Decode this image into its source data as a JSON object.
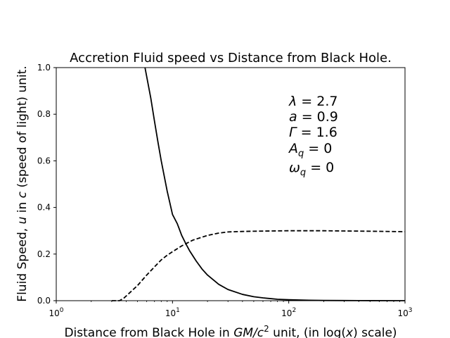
{
  "chart_data": {
    "type": "line",
    "title": "Accretion Fluid speed vs Distance from Black Hole.",
    "xlabel": {
      "pre": "Distance from Black Hole in ",
      "math": "GM/c",
      "sup": "2",
      "post": " unit, (in log(",
      "var": "x",
      "end": ") scale)"
    },
    "ylabel": {
      "pre": "Fluid Speed, ",
      "var1": "u",
      "mid": " in ",
      "var2": "c",
      "post": " (speed of light) unit."
    },
    "xscale": "log",
    "xlim": [
      1,
      1000
    ],
    "ylim": [
      0,
      1
    ],
    "x_ticks": [
      {
        "base": "10",
        "exp": "0",
        "value": 1
      },
      {
        "base": "10",
        "exp": "1",
        "value": 10
      },
      {
        "base": "10",
        "exp": "2",
        "value": 100
      },
      {
        "base": "10",
        "exp": "3",
        "value": 1000
      }
    ],
    "y_ticks": [
      {
        "label": "0.0",
        "value": 0
      },
      {
        "label": "0.2",
        "value": 0.2
      },
      {
        "label": "0.4",
        "value": 0.4
      },
      {
        "label": "0.6",
        "value": 0.6
      },
      {
        "label": "0.8",
        "value": 0.8
      },
      {
        "label": "1.0",
        "value": 1.0
      }
    ],
    "grid": false,
    "annotations": [
      {
        "sym": "λ",
        "sub": "",
        "val": " = 2.7"
      },
      {
        "sym": "a",
        "sub": "",
        "val": " = 0.9"
      },
      {
        "sym": "Γ",
        "sub": "",
        "val": " = 1.6"
      },
      {
        "sym": "A",
        "sub": "q",
        "val": " = 0"
      },
      {
        "sym": "ω",
        "sub": "q",
        "val": " = 0"
      }
    ],
    "series": [
      {
        "style": "solid",
        "color": "#000000",
        "x": [
          5.8,
          6.5,
          7.0,
          7.5,
          8.0,
          9.0,
          10.0,
          11.0,
          12.0,
          13.0,
          14.0,
          16.0,
          18.0,
          20.0,
          25.0,
          30.0,
          40.0,
          50.0,
          60.0,
          80.0,
          100.0,
          150.0,
          200.0,
          300.0,
          500.0,
          1000.0
        ],
        "y": [
          1.0,
          0.87,
          0.77,
          0.68,
          0.6,
          0.47,
          0.37,
          0.33,
          0.28,
          0.245,
          0.215,
          0.17,
          0.135,
          0.11,
          0.07,
          0.048,
          0.027,
          0.017,
          0.012,
          0.006,
          0.004,
          0.002,
          0.001,
          0.0005,
          0.0002,
          0.0
        ]
      },
      {
        "style": "dashed",
        "color": "#000000",
        "x": [
          3.0,
          3.5,
          3.8,
          4.2,
          5.0,
          6.0,
          7.0,
          8.0,
          9.0,
          10.0,
          12.0,
          15.0,
          20.0,
          25.0,
          30.0,
          40.0,
          50.0,
          70.0,
          100.0,
          150.0,
          200.0,
          300.0,
          500.0,
          1000.0
        ],
        "y": [
          0.0,
          0.0,
          0.01,
          0.03,
          0.065,
          0.11,
          0.145,
          0.175,
          0.195,
          0.21,
          0.235,
          0.26,
          0.28,
          0.29,
          0.295,
          0.297,
          0.298,
          0.299,
          0.3,
          0.3,
          0.3,
          0.299,
          0.298,
          0.296
        ]
      }
    ]
  }
}
